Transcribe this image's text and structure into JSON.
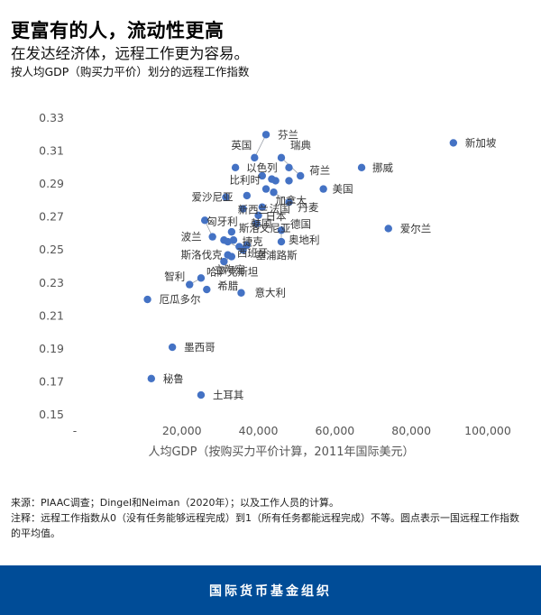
{
  "header": {
    "title": "更富有的人，流动性更高",
    "subtitle": "在发达经济体，远程工作更为容易。",
    "caption": "按人均GDP（购买力平价）划分的远程工作指数"
  },
  "chart_data": {
    "type": "scatter",
    "xlabel": "人均GDP（按购买力平价计算，2011年国际美元）",
    "ylabel": "",
    "xlim": [
      -8000,
      100000
    ],
    "ylim": [
      0.15,
      0.33
    ],
    "x_ticks": [
      {
        "value": -8000,
        "label": "-"
      },
      {
        "value": 20000,
        "label": "20,000"
      },
      {
        "value": 40000,
        "label": "40,000"
      },
      {
        "value": 60000,
        "label": "60,000"
      },
      {
        "value": 80000,
        "label": "80,000"
      },
      {
        "value": 100000,
        "label": "100,000"
      }
    ],
    "y_ticks": [
      {
        "value": 0.15,
        "label": "0.15"
      },
      {
        "value": 0.17,
        "label": "0.17"
      },
      {
        "value": 0.19,
        "label": "0.19"
      },
      {
        "value": 0.21,
        "label": "0.21"
      },
      {
        "value": 0.23,
        "label": "0.23"
      },
      {
        "value": 0.25,
        "label": "0.25"
      },
      {
        "value": 0.27,
        "label": "0.27"
      },
      {
        "value": 0.29,
        "label": "0.29"
      },
      {
        "value": 0.31,
        "label": "0.31"
      },
      {
        "value": 0.33,
        "label": "0.33"
      }
    ],
    "grid": false,
    "marker_color": "#4472c4",
    "points": [
      {
        "name": "芬兰",
        "x": 42000,
        "y": 0.32
      },
      {
        "name": "新加坡",
        "x": 91000,
        "y": 0.315
      },
      {
        "name": "英国",
        "x": 39000,
        "y": 0.306
      },
      {
        "name": "瑞典",
        "x": 46000,
        "y": 0.306
      },
      {
        "name": "以色列",
        "x": 34000,
        "y": 0.3
      },
      {
        "name": "",
        "x": 48000,
        "y": 0.3
      },
      {
        "name": "挪威",
        "x": 67000,
        "y": 0.3
      },
      {
        "name": "荷兰",
        "x": 51000,
        "y": 0.295
      },
      {
        "name": "",
        "x": 41000,
        "y": 0.295
      },
      {
        "name": "",
        "x": 43500,
        "y": 0.293
      },
      {
        "name": "",
        "x": 44500,
        "y": 0.292
      },
      {
        "name": "",
        "x": 48000,
        "y": 0.292
      },
      {
        "name": "比利时",
        "x": 42000,
        "y": 0.287
      },
      {
        "name": "美国",
        "x": 57000,
        "y": 0.287
      },
      {
        "name": "加拿大",
        "x": 44000,
        "y": 0.285
      },
      {
        "name": "",
        "x": 37000,
        "y": 0.283
      },
      {
        "name": "爱沙尼亚",
        "x": 31500,
        "y": 0.282
      },
      {
        "name": "丹麦",
        "x": 48000,
        "y": 0.279
      },
      {
        "name": "新西兰",
        "x": 36000,
        "y": 0.275
      },
      {
        "name": "法国",
        "x": 41000,
        "y": 0.276
      },
      {
        "name": "日本",
        "x": 40000,
        "y": 0.271
      },
      {
        "name": "匈牙利",
        "x": 26000,
        "y": 0.268
      },
      {
        "name": "韩国",
        "x": 39500,
        "y": 0.266
      },
      {
        "name": "爱尔兰",
        "x": 74000,
        "y": 0.263
      },
      {
        "name": "斯洛文尼亚",
        "x": 33000,
        "y": 0.261
      },
      {
        "name": "德国",
        "x": 46000,
        "y": 0.262
      },
      {
        "name": "波兰",
        "x": 28000,
        "y": 0.258
      },
      {
        "name": "",
        "x": 31000,
        "y": 0.256
      },
      {
        "name": "",
        "x": 33500,
        "y": 0.256
      },
      {
        "name": "捷克",
        "x": 32000,
        "y": 0.255
      },
      {
        "name": "奥地利",
        "x": 46000,
        "y": 0.255
      },
      {
        "name": "",
        "x": 37000,
        "y": 0.253
      },
      {
        "name": "",
        "x": 35000,
        "y": 0.252
      },
      {
        "name": "塞浦路斯",
        "x": 36000,
        "y": 0.25
      },
      {
        "name": "斯洛伐克",
        "x": 32000,
        "y": 0.247
      },
      {
        "name": "西班牙",
        "x": 33000,
        "y": 0.246
      },
      {
        "name": "立陶宛",
        "x": 31000,
        "y": 0.243
      },
      {
        "name": "哈萨克斯坦",
        "x": 25000,
        "y": 0.233
      },
      {
        "name": "智利",
        "x": 22000,
        "y": 0.229
      },
      {
        "name": "希腊",
        "x": 26500,
        "y": 0.226
      },
      {
        "name": "意大利",
        "x": 35500,
        "y": 0.224
      },
      {
        "name": "厄瓜多尔",
        "x": 11000,
        "y": 0.22
      },
      {
        "name": "墨西哥",
        "x": 17500,
        "y": 0.191
      },
      {
        "name": "秘鲁",
        "x": 12000,
        "y": 0.172
      },
      {
        "name": "土耳其",
        "x": 25000,
        "y": 0.162
      }
    ],
    "leader_lines": [
      {
        "from": "匈牙利",
        "to": "波兰"
      },
      {
        "from": "芬兰",
        "to": "英国"
      },
      {
        "from": "瑞典",
        "to": "荷兰"
      },
      {
        "from": "加拿大",
        "to": "丹麦"
      },
      {
        "from": "捷克",
        "to": "塞浦路斯"
      },
      {
        "from": "德国",
        "to": "奥地利"
      },
      {
        "from": "西班牙",
        "to": "立陶宛"
      },
      {
        "from": "哈萨克斯坦",
        "to": "智利"
      }
    ]
  },
  "notes": {
    "source": "来源：PIAAC调查；Dingel和Neiman（2020年）；以及工作人员的计算。",
    "note": "注释：远程工作指数从0（没有任务能够远程完成）到1（所有任务都能远程完成）不等。圆点表示一国远程工作指数的平均值。"
  },
  "footer": {
    "org": "国际货币基金组织"
  }
}
